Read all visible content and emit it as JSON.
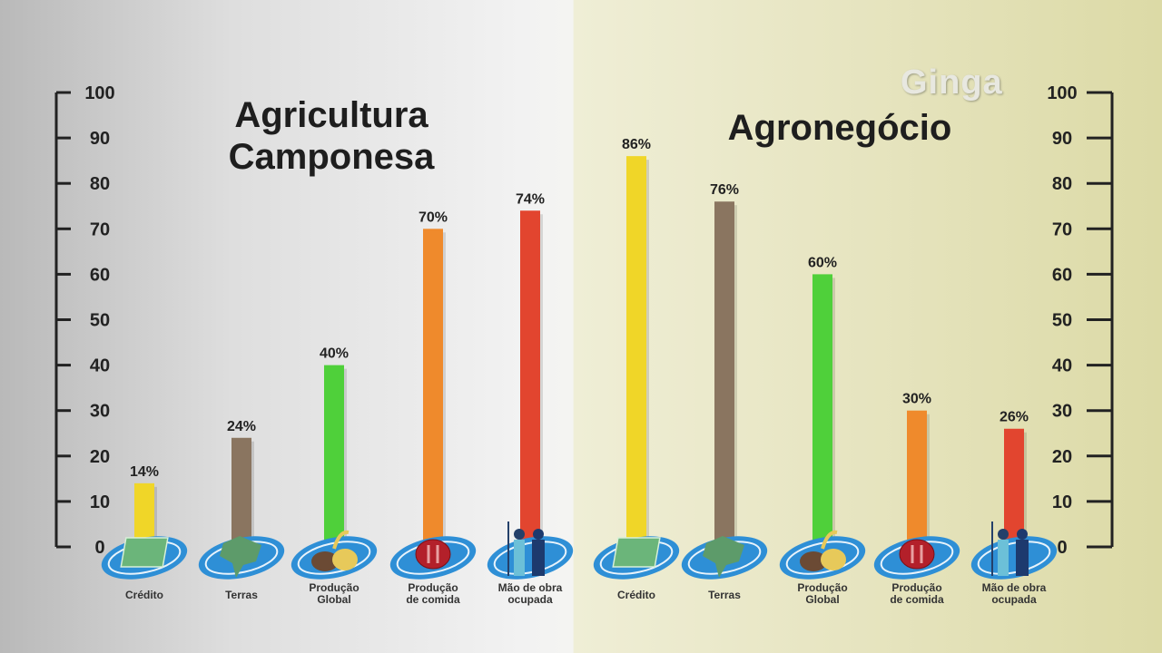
{
  "logo": "Ginga",
  "chart_data": [
    {
      "type": "bar",
      "title": "Agricultura Camponesa",
      "categories": [
        "Crédito",
        "Terras",
        "Produção Global",
        "Produção de comida",
        "Mão de obra ocupada"
      ],
      "values": [
        14,
        24,
        40,
        70,
        74
      ],
      "data_labels": [
        "14%",
        "24%",
        "40%",
        "70%",
        "74%"
      ],
      "colors": [
        "#f0d628",
        "#8a7560",
        "#4fd03a",
        "#ef8a2c",
        "#e2452f"
      ],
      "icons": [
        "money-stack-icon",
        "brazil-map-icon",
        "grains-icon",
        "plate-cutlery-icon",
        "workers-icon"
      ],
      "ylim": [
        0,
        100
      ],
      "yticks": [
        0,
        10,
        20,
        30,
        40,
        50,
        60,
        70,
        80,
        90,
        100
      ],
      "axis": "left",
      "grid": false
    },
    {
      "type": "bar",
      "title": "Agronegócio",
      "categories": [
        "Crédito",
        "Terras",
        "Produção Global",
        "Produção de comida",
        "Mão de obra ocupada"
      ],
      "values": [
        86,
        76,
        60,
        30,
        26
      ],
      "data_labels": [
        "86%",
        "76%",
        "60%",
        "30%",
        "26%"
      ],
      "colors": [
        "#f0d628",
        "#8a7560",
        "#4fd03a",
        "#ef8a2c",
        "#e2452f"
      ],
      "icons": [
        "money-stack-icon",
        "brazil-map-icon",
        "grains-icon",
        "plate-cutlery-icon",
        "workers-icon"
      ],
      "ylim": [
        0,
        100
      ],
      "yticks": [
        0,
        10,
        20,
        30,
        40,
        50,
        60,
        70,
        80,
        90,
        100
      ],
      "axis": "right",
      "grid": false
    }
  ]
}
